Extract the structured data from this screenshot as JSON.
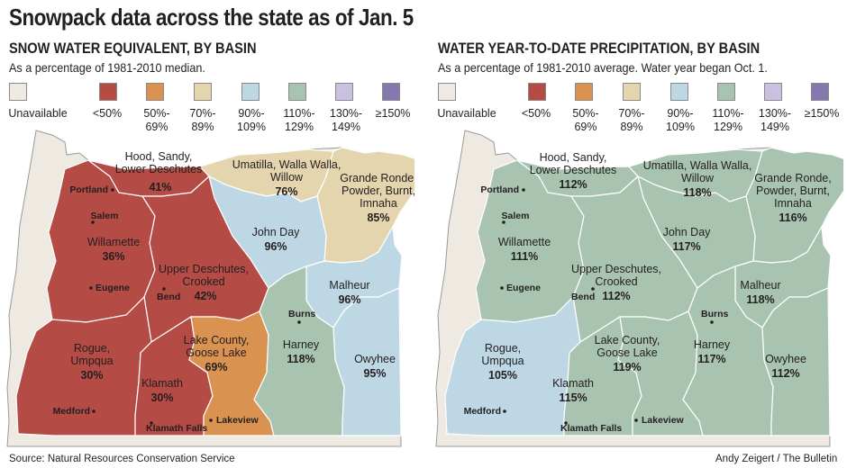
{
  "title": "Snowpack data across the state as of Jan. 5",
  "colors": {
    "unavailable": "#eeeae2",
    "lt50": "#b54b45",
    "50_69": "#d9924f",
    "70_89": "#e4d5ae",
    "90_109": "#bed7e5",
    "110_129": "#a9c3b1",
    "130_149": "#c9c1df",
    "ge150": "#8578ae"
  },
  "legend": [
    {
      "key": "unavailable",
      "label": "Unavailable"
    },
    {
      "key": "lt50",
      "label": "<50%"
    },
    {
      "key": "50_69",
      "label": "50%-\n69%"
    },
    {
      "key": "70_89",
      "label": "70%-\n89%"
    },
    {
      "key": "90_109",
      "label": "90%-\n109%"
    },
    {
      "key": "110_129",
      "label": "110%-\n129%"
    },
    {
      "key": "130_149",
      "label": "130%-\n149%"
    },
    {
      "key": "ge150",
      "label": "≥150%"
    }
  ],
  "maps": [
    {
      "title": "SNOW WATER EQUIVALENT, BY BASIN",
      "subtitle": "As a percentage of 1981-2010 median.",
      "basins": {
        "hood": {
          "name": "Hood, Sandy,\nLower Deschutes",
          "value": "41%",
          "fill": "lt50"
        },
        "willamette": {
          "name": "Willamette",
          "value": "36%",
          "fill": "lt50"
        },
        "upperdeschutes": {
          "name": "Upper Deschutes,\nCrooked",
          "value": "42%",
          "fill": "lt50"
        },
        "rogue": {
          "name": "Rogue,\nUmpqua",
          "value": "30%",
          "fill": "lt50"
        },
        "klamath": {
          "name": "Klamath",
          "value": "30%",
          "fill": "lt50"
        },
        "lakecounty": {
          "name": "Lake County,\nGoose Lake",
          "value": "69%",
          "fill": "50_69"
        },
        "umatilla": {
          "name": "Umatilla, Walla Walla,\nWillow",
          "value": "76%",
          "fill": "70_89"
        },
        "granderonde": {
          "name": "Grande Ronde,\nPowder, Burnt,\nImnaha",
          "value": "85%",
          "fill": "70_89"
        },
        "johnday": {
          "name": "John Day",
          "value": "96%",
          "fill": "90_109"
        },
        "malheur": {
          "name": "Malheur",
          "value": "96%",
          "fill": "90_109"
        },
        "owyhee": {
          "name": "Owyhee",
          "value": "95%",
          "fill": "90_109"
        },
        "harney": {
          "name": "Harney",
          "value": "118%",
          "fill": "110_129"
        }
      }
    },
    {
      "title": "WATER YEAR-TO-DATE PRECIPITATION, BY BASIN",
      "subtitle": "As a percentage of 1981-2010 average. Water year began Oct. 1.",
      "basins": {
        "hood": {
          "name": "Hood, Sandy,\nLower Deschutes",
          "value": "112%",
          "fill": "110_129"
        },
        "willamette": {
          "name": "Willamette",
          "value": "111%",
          "fill": "110_129"
        },
        "upperdeschutes": {
          "name": "Upper Deschutes,\nCrooked",
          "value": "112%",
          "fill": "110_129"
        },
        "rogue": {
          "name": "Rogue,\nUmpqua",
          "value": "105%",
          "fill": "90_109"
        },
        "klamath": {
          "name": "Klamath",
          "value": "115%",
          "fill": "110_129"
        },
        "lakecounty": {
          "name": "Lake County,\nGoose Lake",
          "value": "119%",
          "fill": "110_129"
        },
        "umatilla": {
          "name": "Umatilla, Walla Walla,\nWillow",
          "value": "118%",
          "fill": "110_129"
        },
        "granderonde": {
          "name": "Grande Ronde,\nPowder, Burnt,\nImnaha",
          "value": "116%",
          "fill": "110_129"
        },
        "johnday": {
          "name": "John Day",
          "value": "117%",
          "fill": "110_129"
        },
        "malheur": {
          "name": "Malheur",
          "value": "118%",
          "fill": "110_129"
        },
        "owyhee": {
          "name": "Owyhee",
          "value": "112%",
          "fill": "110_129"
        },
        "harney": {
          "name": "Harney",
          "value": "117%",
          "fill": "110_129"
        }
      }
    }
  ],
  "cities": {
    "portland": "Portland",
    "salem": "Salem",
    "eugene": "Eugene",
    "bend": "Bend",
    "medford": "Medford",
    "klamathfalls": "Klamath Falls",
    "lakeview": "Lakeview",
    "burns": "Burns"
  },
  "footer": {
    "source": "Source: Natural Resources Conservation Service",
    "credit": "Andy Zeigert / The Bulletin"
  }
}
